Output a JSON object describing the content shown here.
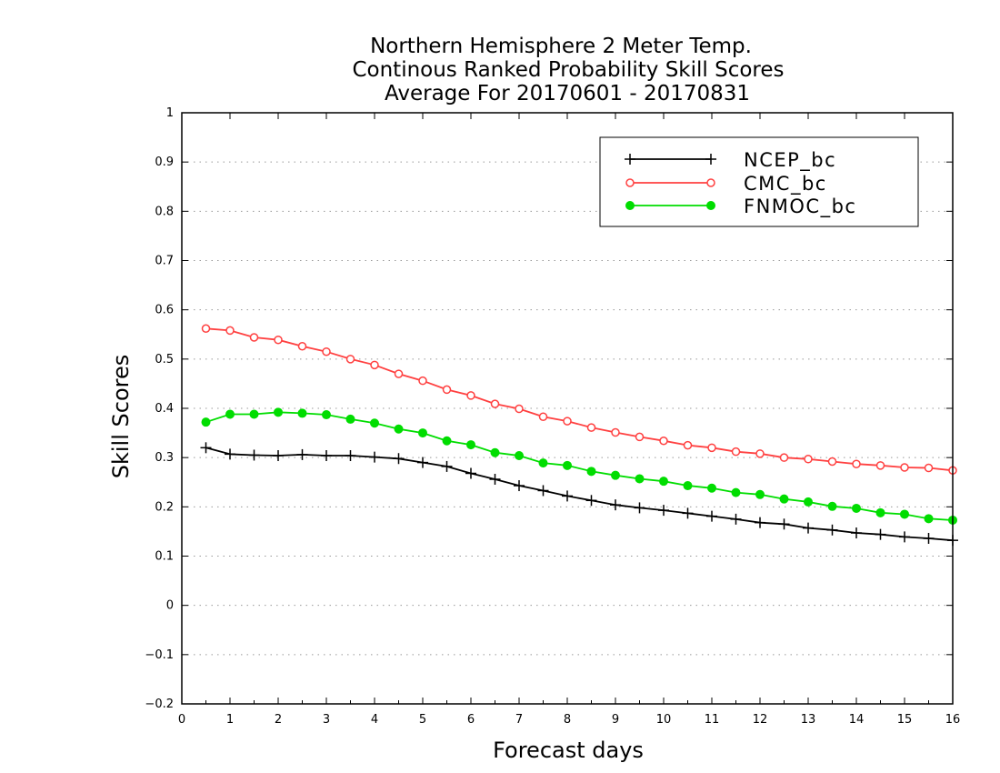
{
  "title": {
    "line1": "Northern Hemisphere 2 Meter Temp.",
    "line2": "Continous Ranked Probability Skill Scores",
    "line3": "Average For 20170601 - 20170831"
  },
  "chart_data": {
    "type": "line",
    "xlabel": "Forecast days",
    "ylabel": "Skill Scores",
    "xlim": [
      0,
      16
    ],
    "ylim": [
      -0.2,
      1
    ],
    "xticks": [
      "0",
      "1",
      "2",
      "3",
      "4",
      "5",
      "6",
      "7",
      "8",
      "9",
      "10",
      "11",
      "12",
      "13",
      "14",
      "15",
      "16"
    ],
    "yticks": [
      "-0.2",
      "-0.1",
      "0",
      "0.1",
      "0.2",
      "0.3",
      "0.4",
      "0.5",
      "0.6",
      "0.7",
      "0.8",
      "0.9",
      "1"
    ],
    "grid": "horizontal dotted",
    "legend_position": "top-right",
    "x": [
      0.5,
      1,
      1.5,
      2,
      2.5,
      3,
      3.5,
      4,
      4.5,
      5,
      5.5,
      6,
      6.5,
      7,
      7.5,
      8,
      8.5,
      9,
      9.5,
      10,
      10.5,
      11,
      11.5,
      12,
      12.5,
      13,
      13.5,
      14,
      14.5,
      15,
      15.5,
      16
    ],
    "series": [
      {
        "name": "NCEP_bc",
        "color": "#000000",
        "marker": "plus",
        "values": [
          0.32,
          0.307,
          0.305,
          0.304,
          0.306,
          0.304,
          0.304,
          0.301,
          0.298,
          0.29,
          0.282,
          0.268,
          0.256,
          0.243,
          0.233,
          0.222,
          0.213,
          0.204,
          0.198,
          0.193,
          0.187,
          0.181,
          0.175,
          0.168,
          0.165,
          0.157,
          0.153,
          0.147,
          0.144,
          0.139,
          0.136,
          0.132
        ]
      },
      {
        "name": "CMC_bc",
        "color": "#ff4040",
        "marker": "open-circle",
        "values": [
          0.562,
          0.558,
          0.544,
          0.539,
          0.526,
          0.515,
          0.5,
          0.488,
          0.47,
          0.456,
          0.438,
          0.426,
          0.409,
          0.399,
          0.383,
          0.374,
          0.361,
          0.351,
          0.342,
          0.334,
          0.325,
          0.32,
          0.312,
          0.308,
          0.3,
          0.297,
          0.292,
          0.287,
          0.284,
          0.28,
          0.279,
          0.274
        ]
      },
      {
        "name": "FNMOC_bc",
        "color": "#00dd00",
        "marker": "filled-circle",
        "values": [
          0.372,
          0.388,
          0.388,
          0.392,
          0.39,
          0.387,
          0.378,
          0.37,
          0.358,
          0.35,
          0.334,
          0.326,
          0.31,
          0.304,
          0.289,
          0.284,
          0.272,
          0.264,
          0.257,
          0.252,
          0.243,
          0.238,
          0.229,
          0.225,
          0.216,
          0.21,
          0.201,
          0.197,
          0.188,
          0.185,
          0.176,
          0.173
        ]
      }
    ]
  }
}
